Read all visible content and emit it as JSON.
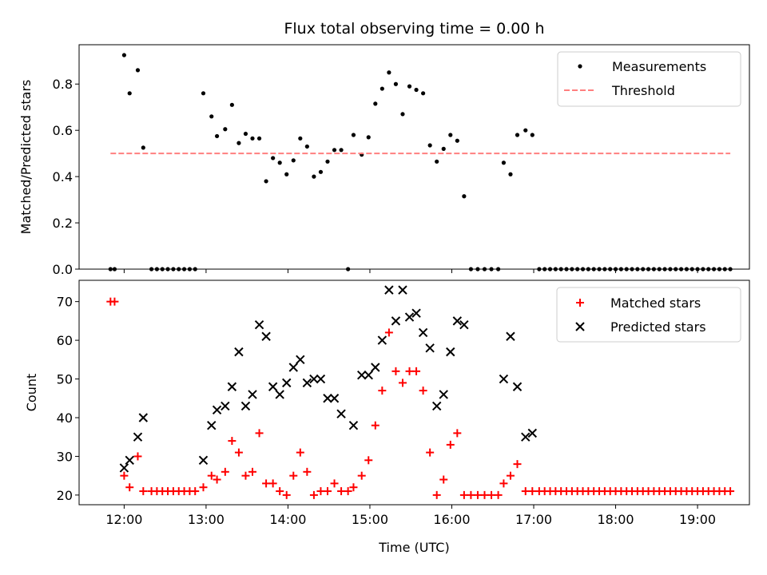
{
  "figure": {
    "title": "Flux total observing time = 0.00 h",
    "xlabel": "Time (UTC)"
  },
  "chart_data": [
    {
      "type": "scatter",
      "ylabel": "Matched/Predicted stars",
      "xlim": [
        "11:27",
        "19:38"
      ],
      "ylim": [
        0,
        0.97
      ],
      "x_ticks": [
        "12:00",
        "13:00",
        "14:00",
        "15:00",
        "16:00",
        "17:00",
        "18:00",
        "19:00"
      ],
      "y_ticks": [
        "0.0",
        "0.2",
        "0.4",
        "0.6",
        "0.8"
      ],
      "legend_position": "top-right",
      "series": [
        {
          "name": "Measurements",
          "marker": "dot",
          "color": "#000000",
          "points": [
            [
              "11:50",
              0.0
            ],
            [
              "11:53",
              0.0
            ],
            [
              "12:00",
              0.925
            ],
            [
              "12:04",
              0.76
            ],
            [
              "12:10",
              0.86
            ],
            [
              "12:14",
              0.525
            ],
            [
              "12:20",
              0.0
            ],
            [
              "12:24",
              0.0
            ],
            [
              "12:28",
              0.0
            ],
            [
              "12:32",
              0.0
            ],
            [
              "12:36",
              0.0
            ],
            [
              "12:40",
              0.0
            ],
            [
              "12:44",
              0.0
            ],
            [
              "12:48",
              0.0
            ],
            [
              "12:52",
              0.0
            ],
            [
              "12:58",
              0.76
            ],
            [
              "13:04",
              0.66
            ],
            [
              "13:08",
              0.575
            ],
            [
              "13:14",
              0.605
            ],
            [
              "13:19",
              0.71
            ],
            [
              "13:24",
              0.545
            ],
            [
              "13:29",
              0.585
            ],
            [
              "13:34",
              0.565
            ],
            [
              "13:39",
              0.565
            ],
            [
              "13:44",
              0.38
            ],
            [
              "13:49",
              0.48
            ],
            [
              "13:54",
              0.46
            ],
            [
              "13:59",
              0.41
            ],
            [
              "14:04",
              0.47
            ],
            [
              "14:09",
              0.565
            ],
            [
              "14:14",
              0.53
            ],
            [
              "14:19",
              0.4
            ],
            [
              "14:24",
              0.42
            ],
            [
              "14:29",
              0.465
            ],
            [
              "14:34",
              0.515
            ],
            [
              "14:39",
              0.515
            ],
            [
              "14:44",
              0.0
            ],
            [
              "14:48",
              0.58
            ],
            [
              "14:54",
              0.495
            ],
            [
              "14:59",
              0.57
            ],
            [
              "15:04",
              0.715
            ],
            [
              "15:09",
              0.78
            ],
            [
              "15:14",
              0.85
            ],
            [
              "15:19",
              0.8
            ],
            [
              "15:24",
              0.67
            ],
            [
              "15:29",
              0.79
            ],
            [
              "15:34",
              0.775
            ],
            [
              "15:39",
              0.76
            ],
            [
              "15:44",
              0.535
            ],
            [
              "15:49",
              0.465
            ],
            [
              "15:54",
              0.52
            ],
            [
              "15:59",
              0.58
            ],
            [
              "16:04",
              0.555
            ],
            [
              "16:09",
              0.315
            ],
            [
              "16:14",
              0.0
            ],
            [
              "16:19",
              0.0
            ],
            [
              "16:24",
              0.0
            ],
            [
              "16:29",
              0.0
            ],
            [
              "16:34",
              0.0
            ],
            [
              "16:38",
              0.46
            ],
            [
              "16:43",
              0.41
            ],
            [
              "16:48",
              0.58
            ],
            [
              "16:54",
              0.6
            ],
            [
              "16:59",
              0.58
            ],
            [
              "17:04",
              0.0
            ],
            [
              "17:08",
              0.0
            ],
            [
              "17:12",
              0.0
            ],
            [
              "17:16",
              0.0
            ],
            [
              "17:20",
              0.0
            ],
            [
              "17:24",
              0.0
            ],
            [
              "17:28",
              0.0
            ],
            [
              "17:32",
              0.0
            ],
            [
              "17:36",
              0.0
            ],
            [
              "17:40",
              0.0
            ],
            [
              "17:44",
              0.0
            ],
            [
              "17:48",
              0.0
            ],
            [
              "17:52",
              0.0
            ],
            [
              "17:56",
              0.0
            ],
            [
              "18:00",
              0.0
            ],
            [
              "18:04",
              0.0
            ],
            [
              "18:08",
              0.0
            ],
            [
              "18:12",
              0.0
            ],
            [
              "18:16",
              0.0
            ],
            [
              "18:20",
              0.0
            ],
            [
              "18:24",
              0.0
            ],
            [
              "18:28",
              0.0
            ],
            [
              "18:32",
              0.0
            ],
            [
              "18:36",
              0.0
            ],
            [
              "18:40",
              0.0
            ],
            [
              "18:44",
              0.0
            ],
            [
              "18:48",
              0.0
            ],
            [
              "18:52",
              0.0
            ],
            [
              "18:56",
              0.0
            ],
            [
              "19:00",
              0.0
            ],
            [
              "19:04",
              0.0
            ],
            [
              "19:08",
              0.0
            ],
            [
              "19:12",
              0.0
            ],
            [
              "19:16",
              0.0
            ],
            [
              "19:20",
              0.0
            ],
            [
              "19:24",
              0.0
            ]
          ]
        },
        {
          "name": "Threshold",
          "type": "line",
          "style": "dashed",
          "color": "#ff7f7f",
          "points": [
            [
              "11:50",
              0.5
            ],
            [
              "19:24",
              0.5
            ]
          ]
        }
      ]
    },
    {
      "type": "scatter",
      "ylabel": "Count",
      "xlim": [
        "11:27",
        "19:38"
      ],
      "ylim": [
        17.5,
        75.5
      ],
      "x_ticks": [
        "12:00",
        "13:00",
        "14:00",
        "15:00",
        "16:00",
        "17:00",
        "18:00",
        "19:00"
      ],
      "y_ticks": [
        "20",
        "30",
        "40",
        "50",
        "60",
        "70"
      ],
      "legend_position": "top-right",
      "series": [
        {
          "name": "Matched stars",
          "marker": "plus",
          "color": "#ff0000",
          "points": [
            [
              "11:50",
              70
            ],
            [
              "11:53",
              70
            ],
            [
              "12:00",
              25
            ],
            [
              "12:04",
              22
            ],
            [
              "12:10",
              30
            ],
            [
              "12:14",
              21
            ],
            [
              "12:20",
              21
            ],
            [
              "12:24",
              21
            ],
            [
              "12:28",
              21
            ],
            [
              "12:32",
              21
            ],
            [
              "12:36",
              21
            ],
            [
              "12:40",
              21
            ],
            [
              "12:44",
              21
            ],
            [
              "12:48",
              21
            ],
            [
              "12:52",
              21
            ],
            [
              "12:58",
              22
            ],
            [
              "13:04",
              25
            ],
            [
              "13:08",
              24
            ],
            [
              "13:14",
              26
            ],
            [
              "13:19",
              34
            ],
            [
              "13:24",
              31
            ],
            [
              "13:29",
              25
            ],
            [
              "13:34",
              26
            ],
            [
              "13:39",
              36
            ],
            [
              "13:44",
              23
            ],
            [
              "13:49",
              23
            ],
            [
              "13:54",
              21
            ],
            [
              "13:59",
              20
            ],
            [
              "14:04",
              25
            ],
            [
              "14:09",
              31
            ],
            [
              "14:14",
              26
            ],
            [
              "14:19",
              20
            ],
            [
              "14:24",
              21
            ],
            [
              "14:29",
              21
            ],
            [
              "14:34",
              23
            ],
            [
              "14:39",
              21
            ],
            [
              "14:44",
              21
            ],
            [
              "14:48",
              22
            ],
            [
              "14:54",
              25
            ],
            [
              "14:59",
              29
            ],
            [
              "15:04",
              38
            ],
            [
              "15:09",
              47
            ],
            [
              "15:14",
              62
            ],
            [
              "15:19",
              52
            ],
            [
              "15:24",
              49
            ],
            [
              "15:29",
              52
            ],
            [
              "15:34",
              52
            ],
            [
              "15:39",
              47
            ],
            [
              "15:44",
              31
            ],
            [
              "15:49",
              20
            ],
            [
              "15:54",
              24
            ],
            [
              "15:59",
              33
            ],
            [
              "16:04",
              36
            ],
            [
              "16:09",
              20
            ],
            [
              "16:14",
              20
            ],
            [
              "16:19",
              20
            ],
            [
              "16:24",
              20
            ],
            [
              "16:29",
              20
            ],
            [
              "16:34",
              20
            ],
            [
              "16:38",
              23
            ],
            [
              "16:43",
              25
            ],
            [
              "16:48",
              28
            ],
            [
              "16:54",
              21
            ],
            [
              "16:59",
              21
            ],
            [
              "17:04",
              21
            ],
            [
              "17:08",
              21
            ],
            [
              "17:12",
              21
            ],
            [
              "17:16",
              21
            ],
            [
              "17:20",
              21
            ],
            [
              "17:24",
              21
            ],
            [
              "17:28",
              21
            ],
            [
              "17:32",
              21
            ],
            [
              "17:36",
              21
            ],
            [
              "17:40",
              21
            ],
            [
              "17:44",
              21
            ],
            [
              "17:48",
              21
            ],
            [
              "17:52",
              21
            ],
            [
              "17:56",
              21
            ],
            [
              "18:00",
              21
            ],
            [
              "18:04",
              21
            ],
            [
              "18:08",
              21
            ],
            [
              "18:12",
              21
            ],
            [
              "18:16",
              21
            ],
            [
              "18:20",
              21
            ],
            [
              "18:24",
              21
            ],
            [
              "18:28",
              21
            ],
            [
              "18:32",
              21
            ],
            [
              "18:36",
              21
            ],
            [
              "18:40",
              21
            ],
            [
              "18:44",
              21
            ],
            [
              "18:48",
              21
            ],
            [
              "18:52",
              21
            ],
            [
              "18:56",
              21
            ],
            [
              "19:00",
              21
            ],
            [
              "19:04",
              21
            ],
            [
              "19:08",
              21
            ],
            [
              "19:12",
              21
            ],
            [
              "19:16",
              21
            ],
            [
              "19:20",
              21
            ],
            [
              "19:24",
              21
            ]
          ]
        },
        {
          "name": "Predicted stars",
          "marker": "x",
          "color": "#000000",
          "points": [
            [
              "12:00",
              27
            ],
            [
              "12:04",
              29
            ],
            [
              "12:10",
              35
            ],
            [
              "12:14",
              40
            ],
            [
              "12:58",
              29
            ],
            [
              "13:04",
              38
            ],
            [
              "13:08",
              42
            ],
            [
              "13:14",
              43
            ],
            [
              "13:19",
              48
            ],
            [
              "13:24",
              57
            ],
            [
              "13:29",
              43
            ],
            [
              "13:34",
              46
            ],
            [
              "13:39",
              64
            ],
            [
              "13:44",
              61
            ],
            [
              "13:49",
              48
            ],
            [
              "13:54",
              46
            ],
            [
              "13:59",
              49
            ],
            [
              "14:04",
              53
            ],
            [
              "14:09",
              55
            ],
            [
              "14:14",
              49
            ],
            [
              "14:19",
              50
            ],
            [
              "14:24",
              50
            ],
            [
              "14:29",
              45
            ],
            [
              "14:34",
              45
            ],
            [
              "14:39",
              41
            ],
            [
              "14:48",
              38
            ],
            [
              "14:54",
              51
            ],
            [
              "14:59",
              51
            ],
            [
              "15:04",
              53
            ],
            [
              "15:09",
              60
            ],
            [
              "15:14",
              73
            ],
            [
              "15:19",
              65
            ],
            [
              "15:24",
              73
            ],
            [
              "15:29",
              66
            ],
            [
              "15:34",
              67
            ],
            [
              "15:39",
              62
            ],
            [
              "15:44",
              58
            ],
            [
              "15:49",
              43
            ],
            [
              "15:54",
              46
            ],
            [
              "15:59",
              57
            ],
            [
              "16:04",
              65
            ],
            [
              "16:09",
              64
            ],
            [
              "16:38",
              50
            ],
            [
              "16:43",
              61
            ],
            [
              "16:48",
              48
            ],
            [
              "16:54",
              35
            ],
            [
              "16:59",
              36
            ]
          ]
        }
      ]
    }
  ]
}
